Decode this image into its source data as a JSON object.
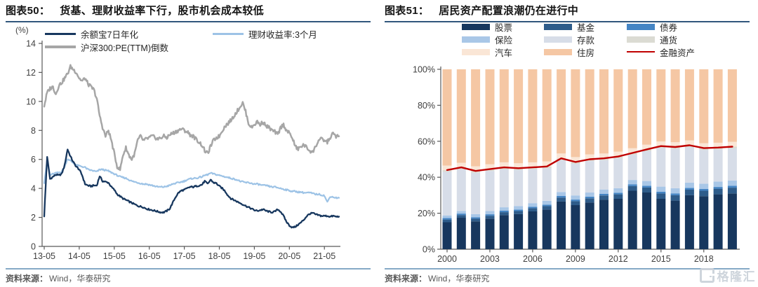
{
  "watermark": {
    "text": "格隆汇",
    "icon": "gelonghui-logo",
    "color": "#ccd3db"
  },
  "left_panel": {
    "label": "图表50：",
    "title": "货基、理财收益率下行，股市机会成本较低",
    "unit": "(%)",
    "source_label": "资料来源：",
    "source_text": "Wind，华泰研究"
  },
  "right_panel": {
    "label": "图表51：",
    "title": "居民资产配置浪潮仍在进行中",
    "source_label": "资料来源：",
    "source_text": "Wind，华泰研究"
  },
  "chart_data": [
    {
      "type": "line",
      "title": "货基、理财收益率下行，股市机会成本较低",
      "unit": "(%)",
      "x_frequency": "monthly",
      "x_range": [
        "2013-05",
        "2021-10"
      ],
      "x_tick_labels": [
        "13-05",
        "14-05",
        "15-05",
        "16-05",
        "17-05",
        "18-05",
        "19-05",
        "20-05",
        "21-05"
      ],
      "x_tick_indices": [
        0,
        12,
        24,
        36,
        48,
        60,
        72,
        84,
        96
      ],
      "ylim": [
        0,
        14
      ],
      "y_ticks": [
        0,
        2,
        4,
        6,
        8,
        10,
        12,
        14
      ],
      "grid": false,
      "legend_position": "top",
      "series": [
        {
          "name": "余额宝7日年化",
          "color": "#17375e",
          "values": [
            2.1,
            6.2,
            4.65,
            4.8,
            4.95,
            4.9,
            5.0,
            5.6,
            6.7,
            6.2,
            5.8,
            5.5,
            5.3,
            4.9,
            4.3,
            4.2,
            4.15,
            4.2,
            4.2,
            4.85,
            4.5,
            4.45,
            4.4,
            4.1,
            3.9,
            3.6,
            3.45,
            3.3,
            3.2,
            3.1,
            3.0,
            2.9,
            2.8,
            2.75,
            2.7,
            2.6,
            2.55,
            2.5,
            2.45,
            2.4,
            2.35,
            2.35,
            2.45,
            2.6,
            3.0,
            3.4,
            3.7,
            3.85,
            3.9,
            4.0,
            4.1,
            4.1,
            4.15,
            4.2,
            4.25,
            4.5,
            4.3,
            4.6,
            4.4,
            4.35,
            4.15,
            4.0,
            3.8,
            3.5,
            3.3,
            3.2,
            3.1,
            3.0,
            2.9,
            2.8,
            2.7,
            2.6,
            2.5,
            2.45,
            2.5,
            2.55,
            2.45,
            2.4,
            2.35,
            2.4,
            2.55,
            2.4,
            2.1,
            1.7,
            1.45,
            1.3,
            1.35,
            1.5,
            1.65,
            1.85,
            2.1,
            2.25,
            2.3,
            2.2,
            2.15,
            2.1,
            2.1,
            2.1,
            2.05,
            2.1,
            2.05,
            2.05
          ]
        },
        {
          "name": "理财收益率:3个月",
          "color": "#9dc3e6",
          "values": [
            4.4,
            5.9,
            4.9,
            5.0,
            5.05,
            5.1,
            5.15,
            5.5,
            6.05,
            5.9,
            5.75,
            5.6,
            5.55,
            5.5,
            5.45,
            5.3,
            5.25,
            5.2,
            5.15,
            5.3,
            5.3,
            5.25,
            5.2,
            5.1,
            5.0,
            4.9,
            4.8,
            4.75,
            4.7,
            4.6,
            4.5,
            4.45,
            4.4,
            4.35,
            4.3,
            4.3,
            4.25,
            4.2,
            4.15,
            4.1,
            4.1,
            4.1,
            4.15,
            4.2,
            4.3,
            4.35,
            4.4,
            4.45,
            4.5,
            4.6,
            4.65,
            4.7,
            4.7,
            4.75,
            4.8,
            4.9,
            4.95,
            5.05,
            5.0,
            4.95,
            4.9,
            4.85,
            4.8,
            4.75,
            4.7,
            4.65,
            4.6,
            4.5,
            4.45,
            4.4,
            4.4,
            4.35,
            4.3,
            4.3,
            4.25,
            4.2,
            4.2,
            4.15,
            4.1,
            4.1,
            4.05,
            4.0,
            3.95,
            3.9,
            3.85,
            3.8,
            3.8,
            3.75,
            3.75,
            3.7,
            3.7,
            3.7,
            3.65,
            3.6,
            3.6,
            3.55,
            3.5,
            3.05,
            3.45,
            3.4,
            3.35,
            3.35
          ]
        },
        {
          "name": "沪深300:PE(TTM)倒数",
          "color": "#a6a6a6",
          "values": [
            9.7,
            10.6,
            10.9,
            11.0,
            10.5,
            11.1,
            11.3,
            11.6,
            11.9,
            12.4,
            12.2,
            12.0,
            11.6,
            11.4,
            11.6,
            11.2,
            11.0,
            10.8,
            10.2,
            9.0,
            8.2,
            7.6,
            8.0,
            7.3,
            6.4,
            5.5,
            5.3,
            6.3,
            6.8,
            6.3,
            6.0,
            6.4,
            7.3,
            7.6,
            7.3,
            7.4,
            7.5,
            7.6,
            7.5,
            7.4,
            7.5,
            7.6,
            7.5,
            7.7,
            7.8,
            7.9,
            8.0,
            8.1,
            8.0,
            7.9,
            7.7,
            7.6,
            7.4,
            7.2,
            7.0,
            6.6,
            6.4,
            6.9,
            7.3,
            7.5,
            7.6,
            8.0,
            8.3,
            8.5,
            8.7,
            9.0,
            9.3,
            9.6,
            9.9,
            9.3,
            8.5,
            8.2,
            8.4,
            8.6,
            8.4,
            8.6,
            8.3,
            8.2,
            8.0,
            7.9,
            7.7,
            8.2,
            8.4,
            8.0,
            7.8,
            7.5,
            6.9,
            6.7,
            6.9,
            7.0,
            6.8,
            6.6,
            6.5,
            6.9,
            7.3,
            7.4,
            7.3,
            7.2,
            7.5,
            7.8,
            7.6,
            7.6
          ]
        }
      ]
    },
    {
      "type": "bar",
      "stacked": true,
      "title": "居民资产配置浪潮仍在进行中",
      "categories": [
        "2000",
        "2001",
        "2002",
        "2003",
        "2004",
        "2005",
        "2006",
        "2007",
        "2008",
        "2009",
        "2010",
        "2011",
        "2012",
        "2013",
        "2014",
        "2015",
        "2016",
        "2017",
        "2018",
        "2019",
        "2020"
      ],
      "x_tick_labels": [
        "2000",
        "2003",
        "2006",
        "2009",
        "2012",
        "2015",
        "2018"
      ],
      "x_tick_indices": [
        0,
        3,
        6,
        9,
        12,
        15,
        18
      ],
      "ylim": [
        0,
        100
      ],
      "y_tick_labels": [
        "0%",
        "20%",
        "40%",
        "60%",
        "80%",
        "100%"
      ],
      "y_tick_values": [
        0,
        20,
        40,
        60,
        80,
        100
      ],
      "grid": false,
      "legend_position": "top",
      "series": [
        {
          "name": "股票",
          "color": "#17375e",
          "values": [
            15,
            17.5,
            15.5,
            17,
            19,
            19.5,
            21,
            22,
            26.5,
            24.5,
            26,
            27.5,
            28,
            32.5,
            31.5,
            28,
            27,
            30,
            29.5,
            30.5,
            31
          ]
        },
        {
          "name": "基金",
          "color": "#2e5c8a",
          "values": [
            1.5,
            1.5,
            1.5,
            1.6,
            1.6,
            1.7,
            1.8,
            2,
            2.2,
            2.2,
            2.3,
            2.4,
            2.5,
            2.6,
            2.8,
            3,
            3,
            3.1,
            3,
            3.1,
            3.2
          ]
        },
        {
          "name": "债券",
          "color": "#4585c4",
          "values": [
            0.8,
            0.8,
            0.8,
            0.8,
            0.8,
            0.8,
            0.8,
            0.8,
            0.9,
            0.9,
            0.9,
            0.9,
            0.9,
            0.9,
            1,
            1,
            1,
            1,
            1,
            1,
            1
          ]
        },
        {
          "name": "保险",
          "color": "#a9c7e7",
          "values": [
            1.5,
            1.5,
            1.7,
            1.8,
            1.9,
            2,
            2,
            2.1,
            2.2,
            2.3,
            2.3,
            2.4,
            2.5,
            2.5,
            2.6,
            2.8,
            2.9,
            2.9,
            2.9,
            3,
            3
          ]
        },
        {
          "name": "存款",
          "color": "#d7dde8",
          "values": [
            24.2,
            23.2,
            23,
            22.3,
            21.2,
            20,
            18.9,
            18.1,
            17.7,
            17.6,
            17.5,
            16.3,
            16.6,
            14,
            16.6,
            21.5,
            21.9,
            19.8,
            18.8,
            17.9,
            17.8
          ]
        },
        {
          "name": "通货",
          "color": "#dbdbd3",
          "values": [
            1,
            1,
            1,
            1,
            1,
            1,
            1,
            1,
            1,
            1,
            1,
            1,
            1,
            1,
            1,
            1,
            1,
            1,
            1,
            1,
            1
          ]
        },
        {
          "name": "汽车",
          "color": "#fae6d6",
          "values": [
            2.5,
            2.5,
            2.6,
            2.7,
            2.8,
            2.8,
            2.8,
            2.8,
            2.7,
            2.7,
            2.7,
            2.7,
            2.7,
            2.6,
            2.6,
            2.6,
            2.7,
            2.7,
            2.7,
            2.7,
            2.7
          ]
        },
        {
          "name": "住房",
          "color": "#f5c7a4",
          "values": [
            53.5,
            52,
            53.9,
            52.8,
            51.7,
            52.2,
            51.7,
            51.2,
            46.8,
            48.8,
            47.3,
            46.8,
            45.8,
            43.9,
            41.9,
            40.1,
            40.5,
            39.5,
            41.1,
            40.8,
            40.3
          ]
        }
      ],
      "line_series": {
        "name": "金融资产",
        "color": "#c00000",
        "values": [
          44,
          45.5,
          43.5,
          44.5,
          45.5,
          45,
          45.5,
          46,
          50.5,
          48.5,
          50,
          50.5,
          51.5,
          53.5,
          55.5,
          57.3,
          56.8,
          57.8,
          56.2,
          56.5,
          57
        ]
      }
    }
  ]
}
